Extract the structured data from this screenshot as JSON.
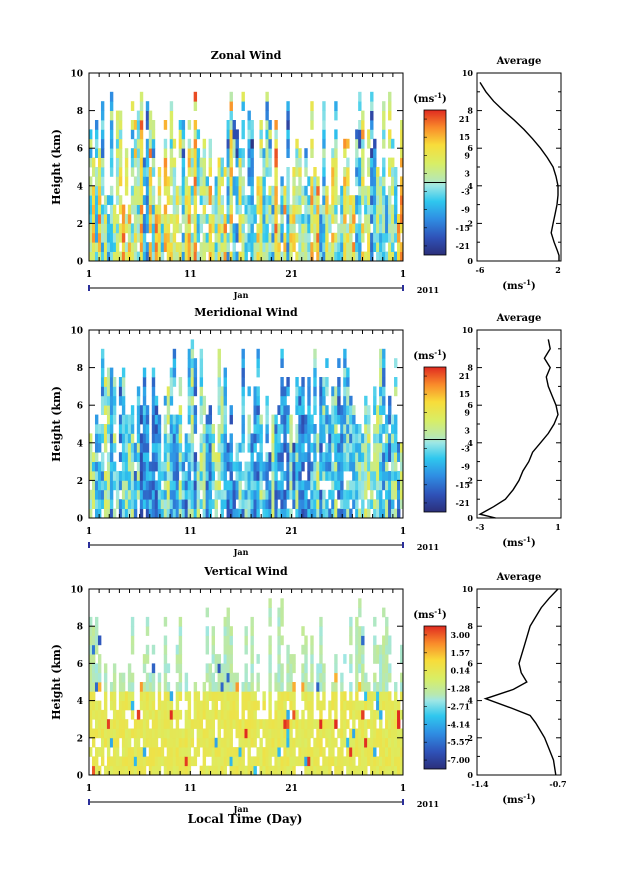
{
  "figure": {
    "x_axis_title": "Local Time (Day)"
  },
  "chart_data": [
    {
      "type": "heatmap",
      "title": "Zonal Wind",
      "ylabel": "Height (km)",
      "ylim": [
        0,
        10
      ],
      "yticks": [
        "0",
        "2",
        "4",
        "6",
        "8",
        "10"
      ],
      "xticks": [
        "1",
        "11",
        "21",
        "1"
      ],
      "month": "Jan",
      "year": "2011",
      "colorbar": {
        "unit": "(ms",
        "unit_exp": "-1",
        "unit_close": ")",
        "labels": [
          "21",
          "15",
          "9",
          "3",
          "-3",
          "-9",
          "-15",
          "-21"
        ],
        "range": [
          -24,
          24
        ]
      },
      "average": {
        "title": "Average",
        "xlabel": "(ms",
        "xlabel_exp": "-1",
        "xlabel_close": ")",
        "xticks": [
          "-6",
          "2"
        ],
        "xlim": [
          -6,
          2
        ],
        "profile_x": [
          -6,
          -5.4,
          -4.6,
          -3.6,
          -2.5,
          -1.5,
          -0.6,
          0.2,
          0.9,
          1.5,
          1.8,
          2.0,
          2.0,
          1.9,
          1.7,
          1.5,
          1.3,
          1.6,
          1.9,
          2.1,
          2.1
        ],
        "profile_y": [
          9.5,
          9.0,
          8.5,
          8.0,
          7.5,
          7.0,
          6.5,
          6.0,
          5.5,
          5.0,
          4.5,
          4.0,
          3.5,
          3.0,
          2.5,
          2.0,
          1.5,
          1.0,
          0.6,
          0.3,
          0.0
        ]
      }
    },
    {
      "type": "heatmap",
      "title": "Meridional Wind",
      "ylabel": "Height (km)",
      "ylim": [
        0,
        10
      ],
      "yticks": [
        "0",
        "2",
        "4",
        "6",
        "8",
        "10"
      ],
      "xticks": [
        "1",
        "11",
        "21",
        "1"
      ],
      "month": "Jan",
      "year": "2011",
      "colorbar": {
        "unit": "(ms",
        "unit_exp": "-1",
        "unit_close": ")",
        "labels": [
          "21",
          "15",
          "9",
          "3",
          "-3",
          "-9",
          "-15",
          "-21"
        ],
        "range": [
          -24,
          24
        ]
      },
      "average": {
        "title": "Average",
        "xlabel": "(ms",
        "xlabel_exp": "-1",
        "xlabel_close": ")",
        "xticks": [
          "-3",
          "1"
        ],
        "xlim": [
          -3,
          1
        ],
        "profile_x": [
          0.5,
          0.6,
          0.3,
          0.6,
          0.4,
          0.5,
          0.7,
          0.9,
          1.0,
          0.8,
          0.5,
          0.1,
          -0.3,
          -0.5,
          -0.8,
          -1.0,
          -1.3,
          -1.7,
          -2.3,
          -3.0,
          -2.2
        ],
        "profile_y": [
          9.5,
          9.0,
          8.5,
          8.0,
          7.5,
          7.0,
          6.5,
          6.0,
          5.5,
          5.0,
          4.5,
          4.0,
          3.5,
          3.0,
          2.5,
          2.0,
          1.5,
          1.0,
          0.6,
          0.2,
          0.0
        ]
      }
    },
    {
      "type": "heatmap",
      "title": "Vertical Wind",
      "ylabel": "Height (km)",
      "ylim": [
        0,
        10
      ],
      "yticks": [
        "0",
        "2",
        "4",
        "6",
        "8",
        "10"
      ],
      "xticks": [
        "1",
        "11",
        "21",
        "1"
      ],
      "month": "Jan",
      "year": "2011",
      "colorbar": {
        "unit": "(ms",
        "unit_exp": "-1",
        "unit_close": ")",
        "labels": [
          "3.00",
          "1.57",
          "0.14",
          "-1.28",
          "-2.71",
          "-4.14",
          "-5.57",
          "-7.00"
        ],
        "range": [
          -7.7,
          3.7
        ]
      },
      "average": {
        "title": "Average",
        "xlabel": "(ms",
        "xlabel_exp": "-1",
        "xlabel_close": ")",
        "xticks": [
          "-1.4",
          "-0.7"
        ],
        "xlim": [
          -1.4,
          -0.7
        ],
        "profile_x": [
          -0.7,
          -0.78,
          -0.85,
          -0.9,
          -0.95,
          -1.0,
          -1.05,
          -1.03,
          -0.98,
          -1.1,
          -1.35,
          -1.12,
          -0.95,
          -0.9,
          -0.86,
          -0.82,
          -0.78,
          -0.74,
          -0.72
        ],
        "profile_y": [
          10.0,
          9.5,
          9.0,
          8.5,
          8.0,
          7.0,
          6.0,
          5.5,
          5.0,
          4.6,
          4.1,
          3.6,
          3.2,
          2.8,
          2.4,
          2.0,
          1.4,
          0.8,
          0.0
        ]
      }
    }
  ]
}
